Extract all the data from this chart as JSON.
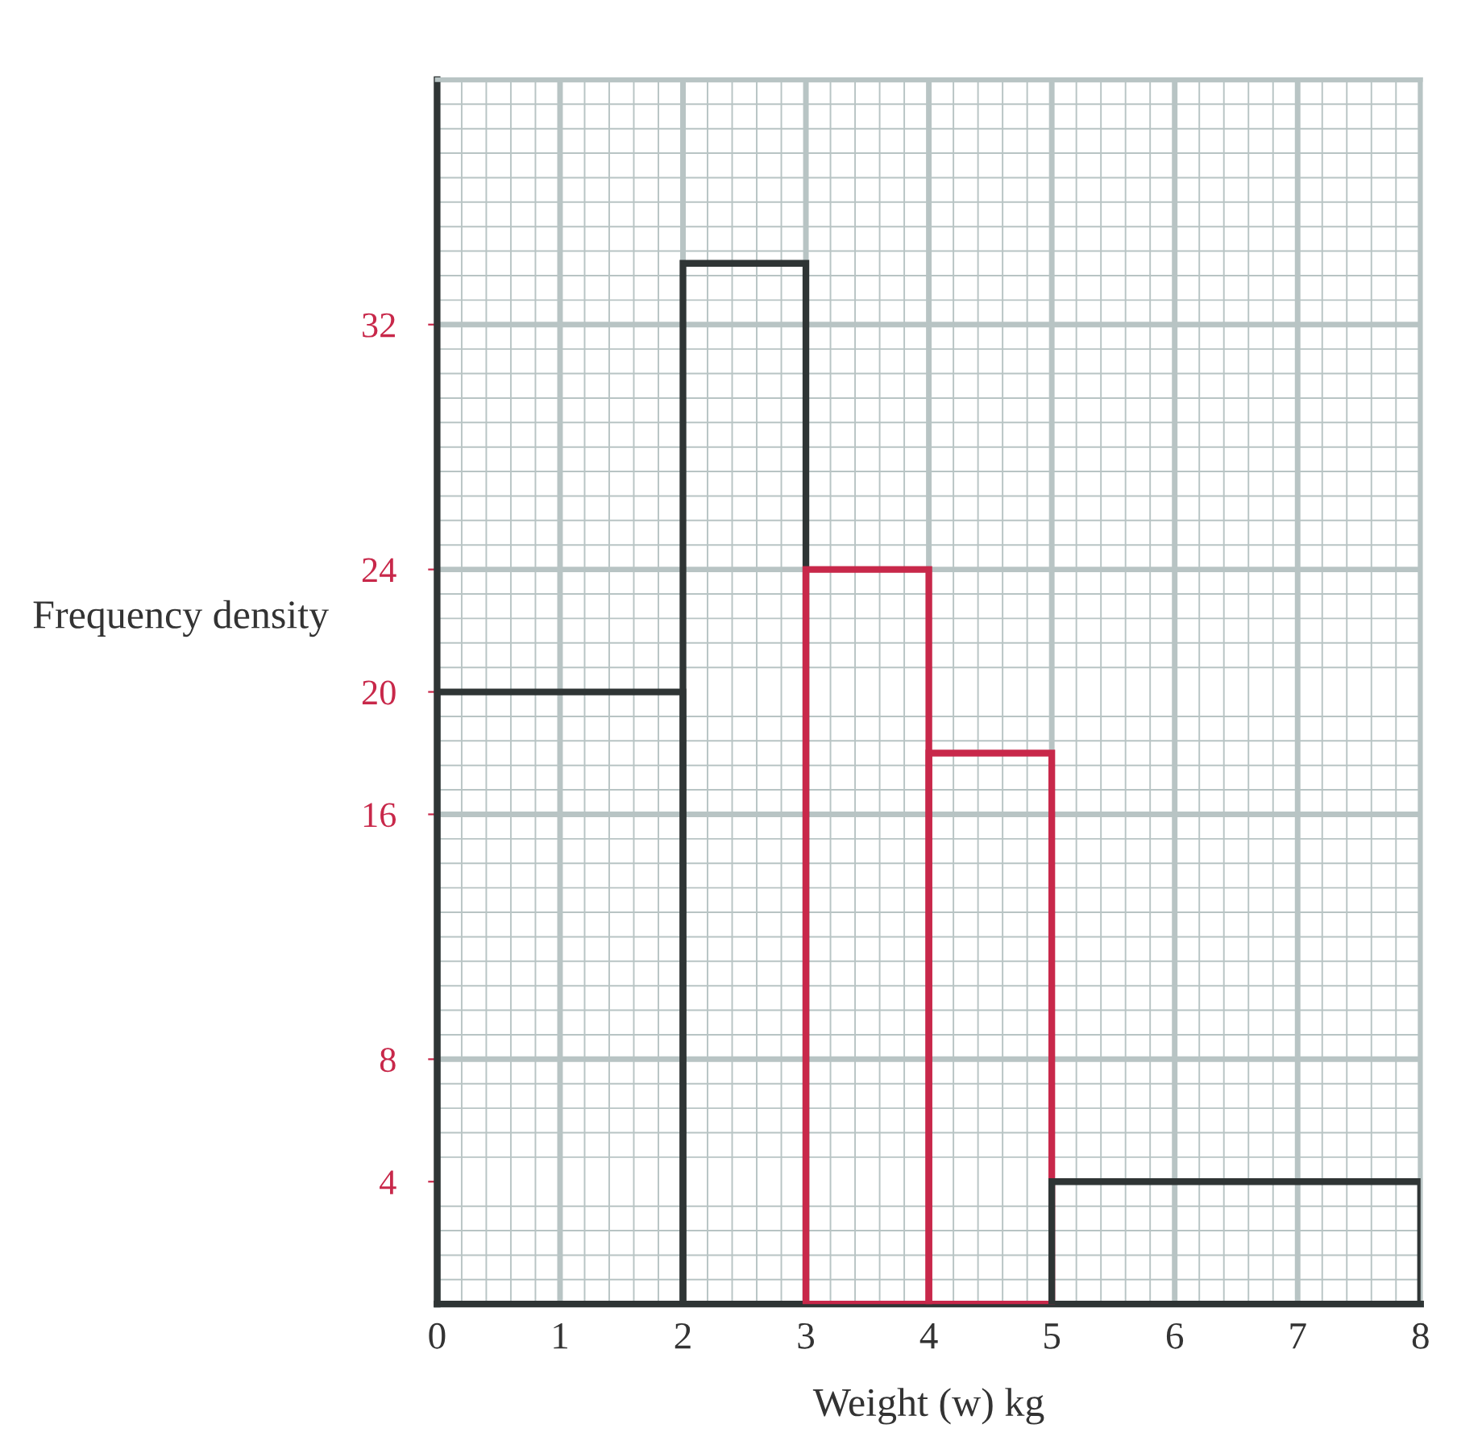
{
  "chart_data": {
    "type": "histogram",
    "xlabel": "Weight (w) kg",
    "ylabel": "Frequency density",
    "bins": [
      0,
      2,
      3,
      4,
      5,
      8
    ],
    "values": [
      20,
      34,
      24,
      18,
      4
    ],
    "colors": [
      "#2f3535",
      "#2f3535",
      "#c8284a",
      "#c8284a",
      "#2f3535"
    ],
    "xlim": [
      0,
      8
    ],
    "ylim": [
      0,
      40
    ],
    "xticks": [
      0,
      1,
      2,
      3,
      4,
      5,
      6,
      7,
      8
    ],
    "yticks": [
      4,
      8,
      16,
      20,
      24,
      32
    ],
    "grid": true
  }
}
